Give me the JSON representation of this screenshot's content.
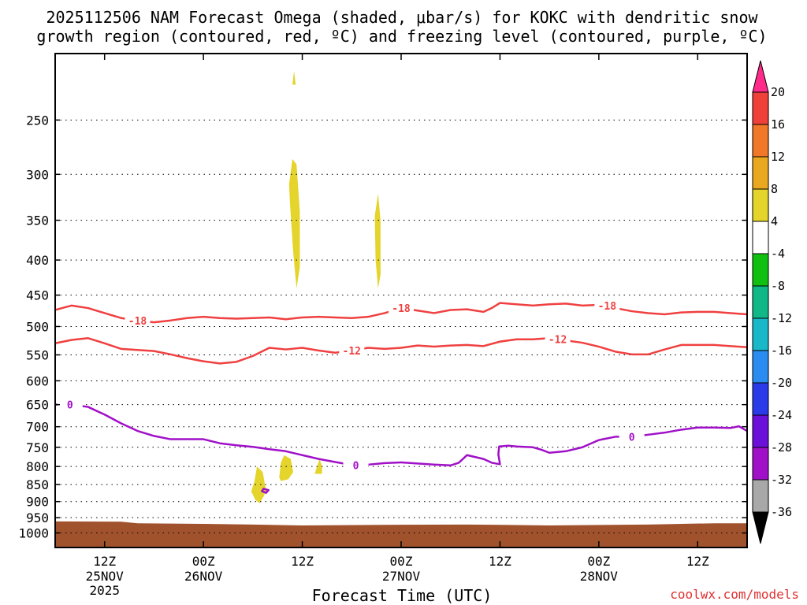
{
  "chart_data": {
    "type": "time-height cross section",
    "title_line1": "2025112506 NAM Forecast Omega (shaded, μbar/s) for KOKC with dendritic snow",
    "title_line2": "growth region (contoured, red, ºC) and freezing level (contoured, purple, ºC)",
    "xlabel": "Forecast Time (UTC)",
    "credit": "coolwx.com/models",
    "y_axis": {
      "units": "mb",
      "scale": "log",
      "range": [
        200,
        1050
      ],
      "ticks": [
        250,
        300,
        350,
        400,
        450,
        500,
        550,
        600,
        650,
        700,
        750,
        800,
        850,
        900,
        950,
        1000
      ]
    },
    "x_axis": {
      "units": "forecast hour",
      "range": [
        0,
        84
      ],
      "ticks": [
        {
          "hour": 6,
          "label1": "12Z",
          "label2": "25NOV",
          "label3": "2025"
        },
        {
          "hour": 18,
          "label1": "00Z",
          "label2": "26NOV",
          "label3": ""
        },
        {
          "hour": 30,
          "label1": "12Z",
          "label2": "",
          "label3": ""
        },
        {
          "hour": 42,
          "label1": "00Z",
          "label2": "27NOV",
          "label3": ""
        },
        {
          "hour": 54,
          "label1": "12Z",
          "label2": "",
          "label3": ""
        },
        {
          "hour": 66,
          "label1": "00Z",
          "label2": "28NOV",
          "label3": ""
        },
        {
          "hour": 78,
          "label1": "12Z",
          "label2": "",
          "label3": ""
        }
      ]
    },
    "colorbar": {
      "labels": [
        "20",
        "16",
        "12",
        "8",
        "4",
        "-4",
        "-8",
        "-12",
        "-16",
        "-20",
        "-24",
        "-28",
        "-32",
        "-36"
      ],
      "colors": [
        "#ff2a8a",
        "#f0403a",
        "#f07828",
        "#eaa820",
        "#e4d42c",
        "#ffffff",
        "#10c010",
        "#10b888",
        "#18b8c8",
        "#2a8cf0",
        "#2a3ae8",
        "#6a10d8",
        "#a010c8",
        "#a8a8a8",
        "#000000"
      ]
    },
    "contours": [
      {
        "name": "dgz-minus-18",
        "label": "-18",
        "color": "#f04040",
        "points": [
          [
            0,
            473
          ],
          [
            2,
            466
          ],
          [
            4,
            470
          ],
          [
            6,
            478
          ],
          [
            8,
            486
          ],
          [
            10,
            490
          ],
          [
            12,
            493
          ],
          [
            14,
            490
          ],
          [
            16,
            486
          ],
          [
            18,
            484
          ],
          [
            20,
            486
          ],
          [
            22,
            487
          ],
          [
            24,
            486
          ],
          [
            26,
            485
          ],
          [
            28,
            488
          ],
          [
            30,
            485
          ],
          [
            32,
            484
          ],
          [
            34,
            485
          ],
          [
            36,
            486
          ],
          [
            38,
            484
          ],
          [
            40,
            478
          ],
          [
            42,
            470
          ],
          [
            44,
            474
          ],
          [
            46,
            478
          ],
          [
            48,
            473
          ],
          [
            50,
            472
          ],
          [
            52,
            476
          ],
          [
            53,
            470
          ],
          [
            54,
            462
          ],
          [
            56,
            464
          ],
          [
            58,
            466
          ],
          [
            60,
            464
          ],
          [
            62,
            463
          ],
          [
            64,
            466
          ],
          [
            66,
            465
          ],
          [
            68,
            470
          ],
          [
            70,
            475
          ],
          [
            72,
            478
          ],
          [
            74,
            480
          ],
          [
            76,
            477
          ],
          [
            78,
            476
          ],
          [
            80,
            476
          ],
          [
            82,
            478
          ],
          [
            84,
            480
          ]
        ],
        "label_at": [
          [
            10,
            490
          ],
          [
            42,
            470
          ],
          [
            67,
            466
          ]
        ]
      },
      {
        "name": "dgz-minus-12",
        "label": "-12",
        "color": "#f04040",
        "points": [
          [
            0,
            529
          ],
          [
            2,
            523
          ],
          [
            4,
            520
          ],
          [
            6,
            529
          ],
          [
            8,
            539
          ],
          [
            10,
            541
          ],
          [
            12,
            543
          ],
          [
            14,
            549
          ],
          [
            16,
            556
          ],
          [
            18,
            562
          ],
          [
            20,
            566
          ],
          [
            22,
            563
          ],
          [
            24,
            552
          ],
          [
            26,
            537
          ],
          [
            28,
            540
          ],
          [
            30,
            537
          ],
          [
            32,
            542
          ],
          [
            34,
            546
          ],
          [
            36,
            542
          ],
          [
            38,
            537
          ],
          [
            40,
            539
          ],
          [
            42,
            537
          ],
          [
            44,
            533
          ],
          [
            46,
            535
          ],
          [
            48,
            533
          ],
          [
            50,
            532
          ],
          [
            52,
            534
          ],
          [
            54,
            526
          ],
          [
            56,
            522
          ],
          [
            58,
            522
          ],
          [
            60,
            520
          ],
          [
            62,
            524
          ],
          [
            64,
            528
          ],
          [
            66,
            535
          ],
          [
            68,
            544
          ],
          [
            70,
            549
          ],
          [
            72,
            549
          ],
          [
            74,
            540
          ],
          [
            76,
            532
          ],
          [
            78,
            532
          ],
          [
            80,
            532
          ],
          [
            82,
            534
          ],
          [
            84,
            536
          ]
        ],
        "label_at": [
          [
            36,
            542
          ],
          [
            61,
            522
          ]
        ]
      },
      {
        "name": "freezing-level-0",
        "label": "0",
        "color": "#a010c8",
        "points": [
          [
            0,
            650
          ],
          [
            2,
            650
          ],
          [
            4,
            655
          ],
          [
            6,
            672
          ],
          [
            8,
            692
          ],
          [
            10,
            710
          ],
          [
            12,
            722
          ],
          [
            14,
            730
          ],
          [
            16,
            730
          ],
          [
            18,
            730
          ],
          [
            20,
            740
          ],
          [
            22,
            745
          ],
          [
            24,
            749
          ],
          [
            26,
            755
          ],
          [
            28,
            760
          ],
          [
            30,
            770
          ],
          [
            32,
            780
          ],
          [
            34,
            788
          ],
          [
            36,
            796
          ],
          [
            38,
            795
          ],
          [
            40,
            791
          ],
          [
            42,
            789
          ],
          [
            44,
            792
          ],
          [
            46,
            795
          ],
          [
            48,
            797
          ],
          [
            49,
            790
          ],
          [
            50,
            770
          ],
          [
            52,
            780
          ],
          [
            53,
            790
          ],
          [
            54,
            794
          ],
          [
            53.8,
            768
          ],
          [
            53.9,
            748
          ],
          [
            55,
            746
          ],
          [
            56,
            748
          ],
          [
            58,
            750
          ],
          [
            59,
            756
          ],
          [
            60,
            764
          ],
          [
            62,
            760
          ],
          [
            64,
            750
          ],
          [
            66,
            732
          ],
          [
            68,
            724
          ],
          [
            70,
            724
          ],
          [
            72,
            719
          ],
          [
            74,
            714
          ],
          [
            76,
            707
          ],
          [
            78,
            702
          ],
          [
            80,
            702
          ],
          [
            82,
            703
          ],
          [
            83,
            699
          ],
          [
            84,
            710
          ]
        ],
        "label_at": [
          [
            1.8,
            650
          ],
          [
            36.5,
            796
          ],
          [
            70,
            724
          ]
        ]
      },
      {
        "name": "freezing-level-0-island",
        "label": "",
        "color": "#a010c8",
        "closed": true,
        "points": [
          [
            25.3,
            862
          ],
          [
            25.9,
            866
          ],
          [
            25.6,
            874
          ],
          [
            25.1,
            869
          ]
        ]
      }
    ],
    "shading": [
      {
        "name": "omega-plume-upper",
        "color": "#e4d42c",
        "points": [
          [
            28.8,
            222
          ],
          [
            29.0,
            212
          ],
          [
            29.2,
            222
          ]
        ]
      },
      {
        "name": "omega-plume-mid",
        "color": "#e4d42c",
        "points": [
          [
            28.4,
            310
          ],
          [
            28.8,
            285
          ],
          [
            29.3,
            290
          ],
          [
            29.7,
            340
          ],
          [
            29.7,
            410
          ],
          [
            29.3,
            440
          ],
          [
            28.9,
            390
          ],
          [
            28.5,
            330
          ]
        ]
      },
      {
        "name": "omega-plume-right",
        "color": "#e4d42c",
        "points": [
          [
            38.8,
            345
          ],
          [
            39.2,
            320
          ],
          [
            39.5,
            350
          ],
          [
            39.5,
            420
          ],
          [
            39.2,
            440
          ],
          [
            38.9,
            400
          ]
        ]
      },
      {
        "name": "omega-low-a",
        "color": "#e4d42c",
        "points": [
          [
            23.8,
            870
          ],
          [
            24.2,
            840
          ],
          [
            24.5,
            800
          ],
          [
            25.2,
            815
          ],
          [
            25.6,
            868
          ],
          [
            25.3,
            885
          ],
          [
            24.8,
            905
          ],
          [
            24.3,
            895
          ]
        ]
      },
      {
        "name": "omega-low-b",
        "color": "#e4d42c",
        "points": [
          [
            27.2,
            830
          ],
          [
            27.4,
            790
          ],
          [
            27.8,
            770
          ],
          [
            28.6,
            780
          ],
          [
            28.9,
            815
          ],
          [
            28.3,
            835
          ],
          [
            27.4,
            840
          ]
        ]
      },
      {
        "name": "omega-low-c",
        "color": "#e4d42c",
        "points": [
          [
            31.5,
            820
          ],
          [
            31.8,
            800
          ],
          [
            32.1,
            780
          ],
          [
            32.4,
            800
          ],
          [
            32.4,
            820
          ]
        ]
      }
    ],
    "terrain": {
      "name": "ground",
      "color": "#a0522d",
      "top": [
        [
          0,
          962
        ],
        [
          8,
          963
        ],
        [
          10,
          968
        ],
        [
          18,
          970
        ],
        [
          24,
          972
        ],
        [
          30,
          975
        ],
        [
          40,
          973
        ],
        [
          50,
          972
        ],
        [
          60,
          975
        ],
        [
          72,
          972
        ],
        [
          80,
          968
        ],
        [
          84,
          968
        ]
      ]
    }
  }
}
